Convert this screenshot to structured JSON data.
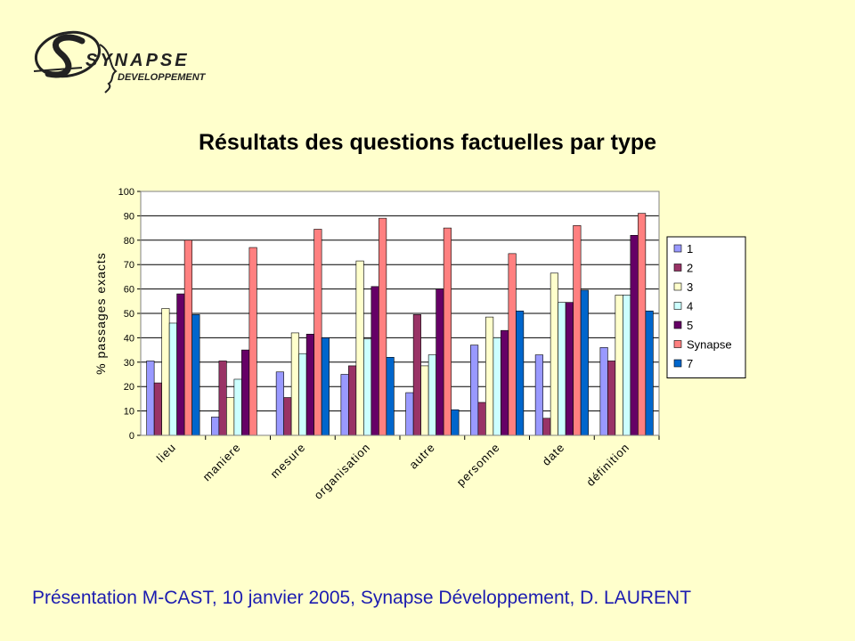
{
  "logo": {
    "brand": "SYNAPSE",
    "subtitle": "DEVELOPPEMENT"
  },
  "footer": {
    "text": "Présentation M-CAST, 10 janvier 2005, Synapse Développement, D. LAURENT",
    "color": "#1c1cb0"
  },
  "chart_data": {
    "type": "bar",
    "title": "Résultats des questions factuelles par type",
    "xlabel": "",
    "ylabel": "% passages exacts",
    "ylim": [
      0,
      100
    ],
    "yticks": [
      0,
      10,
      20,
      30,
      40,
      50,
      60,
      70,
      80,
      90,
      100
    ],
    "grid": true,
    "legend_position": "right",
    "categories": [
      "lieu",
      "maniere",
      "mesure",
      "organisation",
      "autre",
      "personne",
      "date",
      "définition"
    ],
    "series": [
      {
        "name": "1",
        "color": "#9999FF",
        "values": [
          30.5,
          7.5,
          26,
          25,
          17.5,
          37,
          33,
          36
        ]
      },
      {
        "name": "2",
        "color": "#993366",
        "values": [
          21.5,
          30.5,
          15.5,
          28.5,
          49.5,
          13.5,
          7,
          30.5
        ]
      },
      {
        "name": "3",
        "color": "#FFFFCC",
        "values": [
          52,
          15.5,
          42,
          71.5,
          28.5,
          48.5,
          66.5,
          57.5
        ]
      },
      {
        "name": "4",
        "color": "#CCFFFF",
        "values": [
          46,
          23,
          33.5,
          39.5,
          33,
          40,
          54.5,
          57.5
        ]
      },
      {
        "name": "5",
        "color": "#660066",
        "values": [
          58,
          35,
          41.5,
          61,
          60,
          43,
          54.5,
          82
        ]
      },
      {
        "name": "Synapse",
        "color": "#FF8080",
        "values": [
          80,
          77,
          84.5,
          89,
          85,
          74.5,
          86,
          91
        ]
      },
      {
        "name": "7",
        "color": "#0066CC",
        "values": [
          49.5,
          0,
          40,
          32,
          10.5,
          51,
          59.5,
          51
        ]
      }
    ]
  }
}
